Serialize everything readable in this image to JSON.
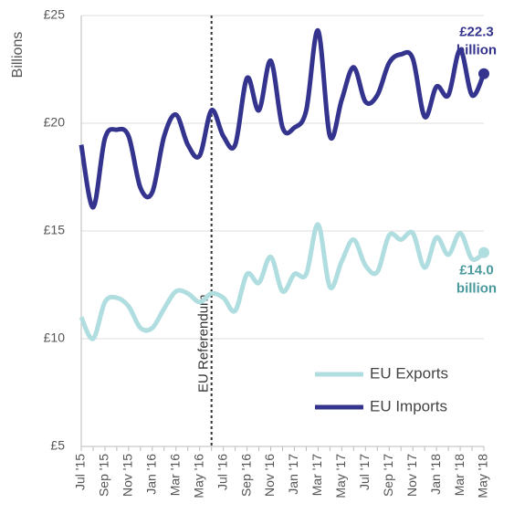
{
  "chart_data": {
    "type": "line",
    "y_label": "Billions",
    "categories": [
      "Jul '15",
      null,
      "Sep '15",
      null,
      "Nov '15",
      null,
      "Jan '16",
      null,
      "Mar '16",
      null,
      "May '16",
      null,
      "Jul '16",
      null,
      "Sep '16",
      null,
      "Nov '16",
      null,
      "Jan '17",
      null,
      "Mar '17",
      null,
      "May '17",
      null,
      "Jul '17",
      null,
      "Sep '17",
      null,
      "Nov '17",
      null,
      "Jan '18",
      null,
      "Mar '18",
      null,
      "May '18"
    ],
    "series": [
      {
        "name": "EU Exports",
        "color": "#b0dde0",
        "label_color": "#4a9a9e",
        "values": [
          11.0,
          10.0,
          11.7,
          11.9,
          11.5,
          10.5,
          10.5,
          11.4,
          12.2,
          12.1,
          11.7,
          12.1,
          11.9,
          11.3,
          13.0,
          12.6,
          13.8,
          12.2,
          13.0,
          13.0,
          15.3,
          12.4,
          13.6,
          14.6,
          13.4,
          13.1,
          14.8,
          14.6,
          14.9,
          13.3,
          14.7,
          13.9,
          14.9,
          13.7,
          14.0
        ],
        "value_labels": [
          null,
          null,
          null,
          null,
          null,
          null,
          null,
          null,
          null,
          null,
          null,
          null,
          null,
          null,
          null,
          null,
          null,
          null,
          null,
          null,
          null,
          null,
          null,
          null,
          null,
          null,
          null,
          null,
          null,
          null,
          null,
          null,
          null,
          null,
          "£14.0 billion"
        ]
      },
      {
        "name": "EU Imports",
        "color": "#34348f",
        "label_color": "#34348f",
        "values": [
          19.0,
          16.1,
          19.3,
          19.7,
          19.4,
          17.0,
          16.8,
          19.4,
          20.4,
          19.0,
          18.5,
          20.6,
          19.4,
          19.0,
          22.1,
          20.6,
          22.9,
          19.8,
          19.8,
          20.6,
          24.3,
          19.4,
          21.1,
          22.6,
          21.0,
          21.3,
          22.8,
          23.2,
          23.0,
          20.3,
          21.7,
          21.3,
          23.4,
          21.3,
          22.3
        ],
        "value_labels": [
          null,
          null,
          null,
          null,
          null,
          null,
          null,
          null,
          null,
          null,
          null,
          null,
          null,
          null,
          null,
          null,
          null,
          null,
          null,
          null,
          null,
          null,
          null,
          null,
          null,
          null,
          null,
          null,
          null,
          null,
          null,
          null,
          null,
          null,
          "£22.3 billion"
        ]
      }
    ],
    "ylim": [
      5,
      25
    ],
    "yticks": [
      {
        "value": 5,
        "label": "£5"
      },
      {
        "value": 10,
        "label": "£10"
      },
      {
        "value": 15,
        "label": "£15"
      },
      {
        "value": 20,
        "label": "£20"
      },
      {
        "value": 25,
        "label": "£25"
      }
    ],
    "grid": true,
    "legend": "lower right",
    "vline": {
      "label": "EU Referendum",
      "at": 11
    }
  }
}
